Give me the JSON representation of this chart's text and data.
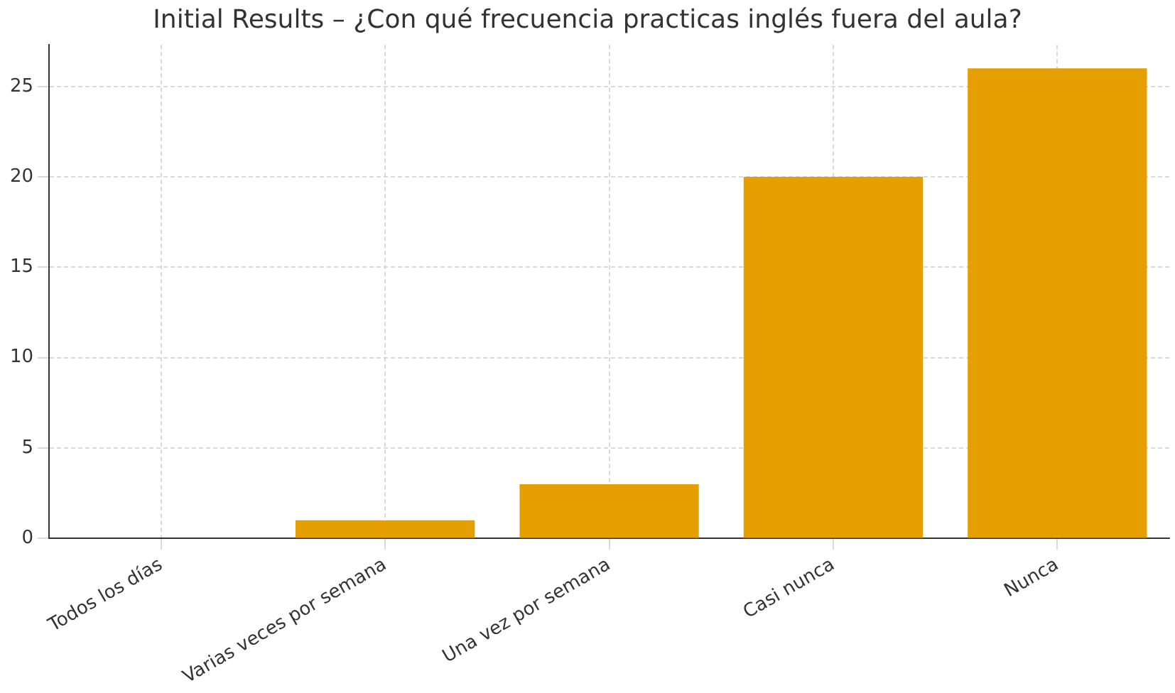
{
  "chart_data": {
    "type": "bar",
    "title": "Initial Results – ¿Con qué frecuencia practicas inglés fuera del aula?",
    "categories": [
      "Todos los días",
      "Varias veces por semana",
      "Una vez por semana",
      "Casi nunca",
      "Nunca"
    ],
    "values": [
      0,
      1,
      3,
      20,
      26
    ],
    "color": "#e69f00",
    "ylim": [
      0,
      27.3
    ],
    "yticks": [
      0,
      5,
      10,
      15,
      20,
      25
    ],
    "grid": true,
    "legend": false
  }
}
